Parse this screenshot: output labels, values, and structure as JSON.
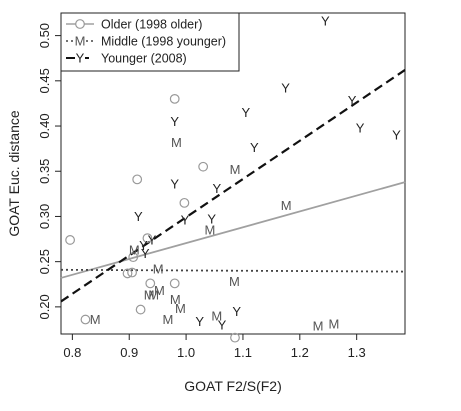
{
  "chart_data": {
    "type": "scatter",
    "xlabel": "GOAT F2/S(F2)",
    "ylabel": "GOAT Euc. distance",
    "xlim": [
      0.78,
      1.385
    ],
    "ylim": [
      0.17,
      0.525
    ],
    "x_ticks": [
      0.8,
      0.9,
      1.0,
      1.1,
      1.2,
      1.3
    ],
    "x_tick_labels": [
      "0.8",
      "0.9",
      "1.0",
      "1.1",
      "1.2",
      "1.3"
    ],
    "y_ticks": [
      0.2,
      0.25,
      0.3,
      0.35,
      0.4,
      0.45,
      0.5
    ],
    "y_tick_labels": [
      "0.20",
      "0.25",
      "0.30",
      "0.35",
      "0.40",
      "0.45",
      "0.50"
    ],
    "legend_position": "top-left",
    "series": [
      {
        "name": "Older (1998 older)",
        "marker": "O",
        "color": "#999999",
        "line_style": "solid",
        "line_color": "#a0a0a0",
        "fit": [
          [
            0.78,
            0.232
          ],
          [
            1.385,
            0.338
          ]
        ],
        "points": [
          [
            0.796,
            0.274
          ],
          [
            0.823,
            0.186
          ],
          [
            0.897,
            0.237
          ],
          [
            0.905,
            0.238
          ],
          [
            0.907,
            0.255
          ],
          [
            0.914,
            0.341
          ],
          [
            0.92,
            0.197
          ],
          [
            0.932,
            0.276
          ],
          [
            0.937,
            0.226
          ],
          [
            0.98,
            0.43
          ],
          [
            0.98,
            0.226
          ],
          [
            0.997,
            0.315
          ],
          [
            1.03,
            0.355
          ],
          [
            1.086,
            0.166
          ]
        ]
      },
      {
        "name": "Middle (1998 younger)",
        "marker": "M",
        "color": "#555555",
        "line_style": "dotted",
        "line_color": "#444444",
        "fit": [
          [
            0.78,
            0.241
          ],
          [
            1.385,
            0.239
          ]
        ],
        "points": [
          [
            0.84,
            0.186
          ],
          [
            0.909,
            0.263
          ],
          [
            0.935,
            0.213
          ],
          [
            0.943,
            0.213
          ],
          [
            0.951,
            0.242
          ],
          [
            0.953,
            0.218
          ],
          [
            0.968,
            0.186
          ],
          [
            0.981,
            0.208
          ],
          [
            0.983,
            0.382
          ],
          [
            0.99,
            0.198
          ],
          [
            1.042,
            0.285
          ],
          [
            1.054,
            0.19
          ],
          [
            1.085,
            0.228
          ],
          [
            1.086,
            0.352
          ],
          [
            1.176,
            0.312
          ],
          [
            1.232,
            0.179
          ],
          [
            1.26,
            0.181
          ]
        ]
      },
      {
        "name": "Younger (2008)",
        "marker": "Y",
        "color": "#222222",
        "line_style": "dashed",
        "line_color": "#111111",
        "fit": [
          [
            0.78,
            0.206
          ],
          [
            1.385,
            0.462
          ]
        ],
        "points": [
          [
            0.916,
            0.3
          ],
          [
            0.925,
            0.268
          ],
          [
            0.928,
            0.259
          ],
          [
            0.94,
            0.274
          ],
          [
            0.98,
            0.405
          ],
          [
            0.98,
            0.336
          ],
          [
            0.998,
            0.296
          ],
          [
            1.024,
            0.184
          ],
          [
            1.045,
            0.297
          ],
          [
            1.054,
            0.331
          ],
          [
            1.063,
            0.18
          ],
          [
            1.089,
            0.195
          ],
          [
            1.105,
            0.415
          ],
          [
            1.12,
            0.376
          ],
          [
            1.175,
            0.442
          ],
          [
            1.245,
            0.516
          ],
          [
            1.292,
            0.428
          ],
          [
            1.306,
            0.398
          ],
          [
            1.37,
            0.39
          ]
        ]
      }
    ]
  }
}
